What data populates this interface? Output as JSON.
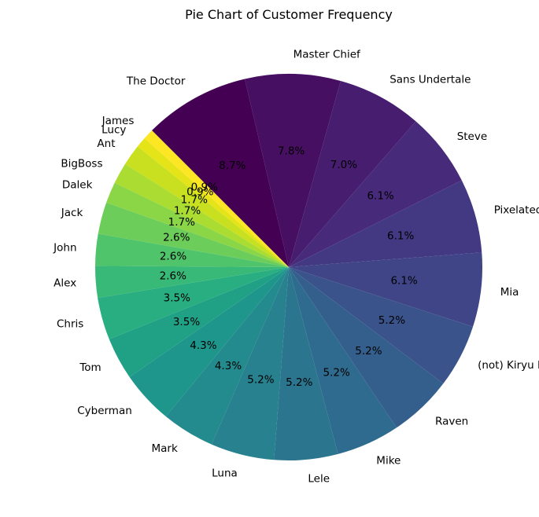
{
  "chart_data": {
    "type": "pie",
    "title": "Pie Chart of Customer Frequency",
    "start_angle_deg": 135,
    "direction": "clockwise",
    "slices": [
      {
        "label": "The Doctor",
        "value": 10,
        "pct_label": "8.7%",
        "color": "#440154"
      },
      {
        "label": "Master Chief",
        "value": 9,
        "pct_label": "7.8%",
        "color": "#460f62"
      },
      {
        "label": "Sans Undertale",
        "value": 8,
        "pct_label": "7.0%",
        "color": "#471d6f"
      },
      {
        "label": "Steve",
        "value": 7,
        "pct_label": "6.1%",
        "color": "#472a7a"
      },
      {
        "label": "Pixelated Miku",
        "value": 7,
        "pct_label": "6.1%",
        "color": "#433882"
      },
      {
        "label": "Mia",
        "value": 7,
        "pct_label": "6.1%",
        "color": "#3f4587"
      },
      {
        "label": "(not) Kiryu Kazuma",
        "value": 6,
        "pct_label": "5.2%",
        "color": "#3a538b"
      },
      {
        "label": "Raven",
        "value": 6,
        "pct_label": "5.2%",
        "color": "#345f8d"
      },
      {
        "label": "Mike",
        "value": 6,
        "pct_label": "5.2%",
        "color": "#2f6b8e"
      },
      {
        "label": "Lele",
        "value": 6,
        "pct_label": "5.2%",
        "color": "#2b768e"
      },
      {
        "label": "Luna",
        "value": 6,
        "pct_label": "5.2%",
        "color": "#27818e"
      },
      {
        "label": "Mark",
        "value": 5,
        "pct_label": "4.3%",
        "color": "#238b8d"
      },
      {
        "label": "Cyberman",
        "value": 5,
        "pct_label": "4.3%",
        "color": "#1f968b"
      },
      {
        "label": "Tom",
        "value": 4,
        "pct_label": "3.5%",
        "color": "#20a186"
      },
      {
        "label": "Chris",
        "value": 4,
        "pct_label": "3.5%",
        "color": "#28ae80"
      },
      {
        "label": "Alex",
        "value": 3,
        "pct_label": "2.6%",
        "color": "#39b977"
      },
      {
        "label": "John",
        "value": 3,
        "pct_label": "2.6%",
        "color": "#50c46a"
      },
      {
        "label": "Jack",
        "value": 3,
        "pct_label": "2.6%",
        "color": "#6ccd5a"
      },
      {
        "label": "Dalek",
        "value": 2,
        "pct_label": "1.7%",
        "color": "#8bd646"
      },
      {
        "label": "BigBoss",
        "value": 2,
        "pct_label": "1.7%",
        "color": "#aadc32"
      },
      {
        "label": "Ant",
        "value": 2,
        "pct_label": "1.7%",
        "color": "#c8e020"
      },
      {
        "label": "Lucy",
        "value": 1,
        "pct_label": "0.9%",
        "color": "#e5e419"
      },
      {
        "label": "James",
        "value": 1,
        "pct_label": "0.9%",
        "color": "#fde725"
      }
    ]
  }
}
